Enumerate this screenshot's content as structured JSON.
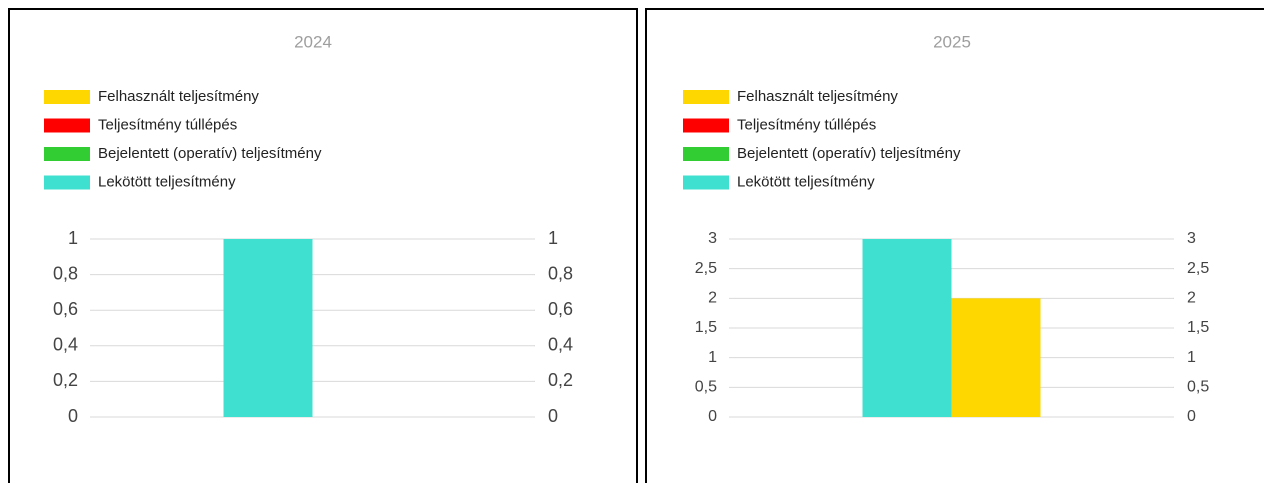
{
  "chart_data": [
    {
      "type": "bar",
      "title": "2024",
      "categories": [
        null
      ],
      "series": [
        {
          "name": "Felhasznált teljesítmény",
          "color": "#ffd700",
          "values": [
            0
          ]
        },
        {
          "name": "Teljesítmény túllépés",
          "color": "#ff0000",
          "values": [
            null
          ]
        },
        {
          "name": "Bejelentett (operatív) teljesítmény",
          "color": "#32cd32",
          "values": [
            null
          ]
        },
        {
          "name": "Lekötött teljesítmény",
          "color": "#40e0d0",
          "values": [
            1
          ]
        }
      ],
      "ylim": [
        0,
        1
      ],
      "yticks": [
        0,
        {
          "value": 0.2,
          "label": "0,2"
        },
        {
          "value": 0.4,
          "label": "0,4"
        },
        {
          "value": 0.6,
          "label": "0,6"
        },
        {
          "value": 0.8,
          "label": "0,8"
        },
        1
      ],
      "y2lim": [
        0,
        1
      ],
      "y2ticks": [
        0,
        {
          "value": 0.2,
          "label": "0,2"
        },
        {
          "value": 0.4,
          "label": "0,4"
        },
        {
          "value": 0.6,
          "label": "0,6"
        },
        {
          "value": 0.8,
          "label": "0,8"
        },
        1
      ],
      "grid": true,
      "legend": "top"
    },
    {
      "type": "bar",
      "title": "2025",
      "categories": [
        null
      ],
      "series": [
        {
          "name": "Felhasznált teljesítmény",
          "color": "#ffd700",
          "values": [
            2
          ]
        },
        {
          "name": "Teljesítmény túllépés",
          "color": "#ff0000",
          "values": [
            null
          ]
        },
        {
          "name": "Bejelentett (operatív) teljesítmény",
          "color": "#32cd32",
          "values": [
            null
          ]
        },
        {
          "name": "Lekötött teljesítmény",
          "color": "#40e0d0",
          "values": [
            3
          ]
        }
      ],
      "ylim": [
        0,
        3
      ],
      "yticks": [
        0,
        {
          "value": 0.5,
          "label": "0,5"
        },
        1,
        {
          "value": 1.5,
          "label": "1,5"
        },
        2,
        {
          "value": 2.5,
          "label": "2,5"
        },
        3
      ],
      "y2lim": [
        0,
        3
      ],
      "y2ticks": [
        0,
        {
          "value": 0.5,
          "label": "0,5"
        },
        1,
        {
          "value": 1.5,
          "label": "1,5"
        },
        2,
        {
          "value": 2.5,
          "label": "2,5"
        },
        3
      ],
      "grid": true,
      "legend": "top"
    }
  ]
}
